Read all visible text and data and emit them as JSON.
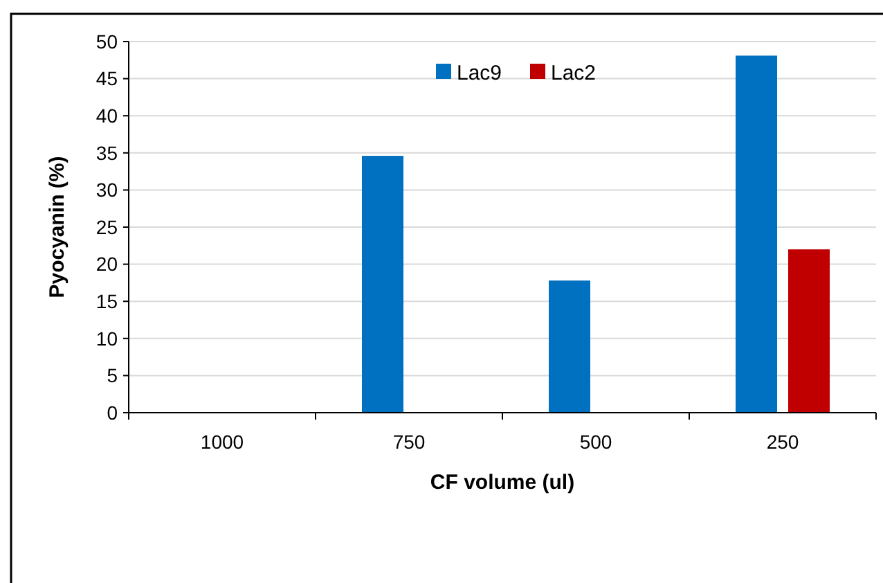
{
  "chart_data": {
    "type": "bar",
    "xlabel": "CF volume (ul)",
    "ylabel": "Pyocyanin (%)",
    "categories": [
      "1000",
      "750",
      "500",
      "250"
    ],
    "series": [
      {
        "name": "Lac9",
        "color": "#0070c0",
        "values": [
          0,
          34.6,
          17.8,
          48.1
        ]
      },
      {
        "name": "Lac2",
        "color": "#c00000",
        "values": [
          0,
          0,
          0,
          22
        ]
      }
    ],
    "ylim": [
      0,
      50
    ],
    "yticks": [
      0,
      5,
      10,
      15,
      20,
      25,
      30,
      35,
      40,
      45,
      50
    ],
    "grid": "y",
    "legend": "top"
  }
}
